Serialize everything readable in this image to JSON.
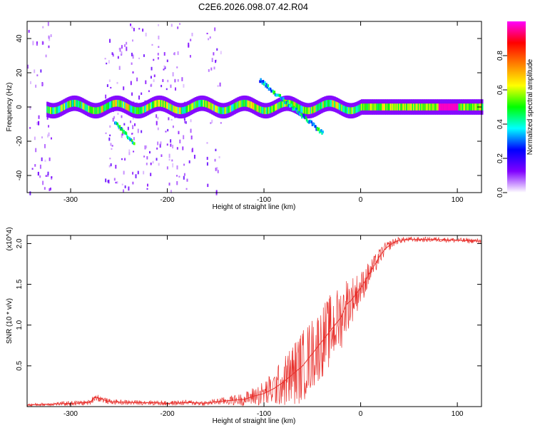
{
  "title": "C2E6.2026.098.07.42.R04",
  "chart_data": [
    {
      "type": "heatmap",
      "name": "spectrogram",
      "xlabel": "Height of straight line (km)",
      "ylabel": "Frequency (Hz)",
      "xlim": [
        -345,
        125
      ],
      "ylim": [
        -50,
        50
      ],
      "x_ticks": [
        -300,
        -200,
        -100,
        0,
        100
      ],
      "x_tick_labels": [
        "-300",
        "-200",
        "-100",
        "0",
        "100"
      ],
      "y_ticks": [
        -40,
        -20,
        0,
        20,
        40
      ],
      "y_tick_labels": [
        "-40",
        "-20",
        "0",
        "20",
        "40"
      ],
      "colorbar": {
        "label": "Normalized spectral amplitude",
        "range": [
          0,
          1
        ],
        "ticks": [
          0.0,
          0.2,
          0.4,
          0.6,
          0.8
        ],
        "tick_labels": [
          "0.0",
          "0.2",
          "0.4",
          "0.6",
          "0.8"
        ],
        "colormap": [
          "#ffffff",
          "#8000ff",
          "#0000ff",
          "#00ffff",
          "#00ff00",
          "#ffff00",
          "#ff8000",
          "#ff0000",
          "#ff00ff"
        ]
      },
      "features": [
        {
          "kind": "main-band",
          "x": [
            -325,
            125
          ],
          "freq_hz": 0,
          "peak_near_km": 90
        },
        {
          "kind": "secondary-branch",
          "x": [
            -255,
            -235
          ],
          "freq_hz": [
            -10,
            -22
          ]
        },
        {
          "kind": "secondary-branch",
          "x": [
            -105,
            -40
          ],
          "freq_hz": [
            15,
            -16
          ]
        },
        {
          "kind": "noise-columns",
          "x_ranges": [
            [
              -345,
              -320
            ],
            [
              -265,
              -235
            ],
            [
              -240,
              -172
            ],
            [
              -160,
              -145
            ]
          ]
        }
      ]
    },
    {
      "type": "line",
      "name": "snr",
      "xlabel": "Height of straight line (km)",
      "ylabel": "SNR (10 * v/v)",
      "multiplier": "(x10^4)",
      "xlim": [
        -345,
        125
      ],
      "ylim": [
        0,
        2.1
      ],
      "x_ticks": [
        -300,
        -200,
        -100,
        0,
        100
      ],
      "x_tick_labels": [
        "-300",
        "-200",
        "-100",
        "0",
        "100"
      ],
      "y_ticks": [
        0.5,
        1.0,
        1.5,
        2.0
      ],
      "y_tick_labels": [
        "0.5",
        "1.0",
        "1.5",
        "2.0"
      ],
      "color": "#e8302c",
      "x": [
        -345,
        -320,
        -300,
        -280,
        -275,
        -260,
        -240,
        -220,
        -200,
        -180,
        -160,
        -150,
        -140,
        -120,
        -110,
        -100,
        -90,
        -80,
        -70,
        -60,
        -50,
        -40,
        -30,
        -20,
        -15,
        -10,
        -5,
        0,
        5,
        10,
        15,
        20,
        25,
        30,
        35,
        40,
        50,
        60,
        80,
        100,
        125
      ],
      "y": [
        0.02,
        0.03,
        0.04,
        0.05,
        0.12,
        0.06,
        0.05,
        0.05,
        0.04,
        0.05,
        0.04,
        0.06,
        0.07,
        0.09,
        0.13,
        0.16,
        0.22,
        0.3,
        0.4,
        0.5,
        0.65,
        0.8,
        0.95,
        1.1,
        1.25,
        1.3,
        1.38,
        1.45,
        1.55,
        1.65,
        1.75,
        1.85,
        1.93,
        1.98,
        2.02,
        2.04,
        2.05,
        2.05,
        2.05,
        2.04,
        2.03
      ],
      "noise_envelope": [
        0.02,
        0.02,
        0.03,
        0.03,
        0.05,
        0.03,
        0.03,
        0.03,
        0.03,
        0.03,
        0.03,
        0.04,
        0.05,
        0.08,
        0.12,
        0.16,
        0.22,
        0.3,
        0.4,
        0.45,
        0.45,
        0.45,
        0.45,
        0.4,
        0.35,
        0.3,
        0.25,
        0.2,
        0.18,
        0.15,
        0.12,
        0.1,
        0.08,
        0.06,
        0.05,
        0.04,
        0.03,
        0.03,
        0.03,
        0.03,
        0.03
      ]
    }
  ]
}
